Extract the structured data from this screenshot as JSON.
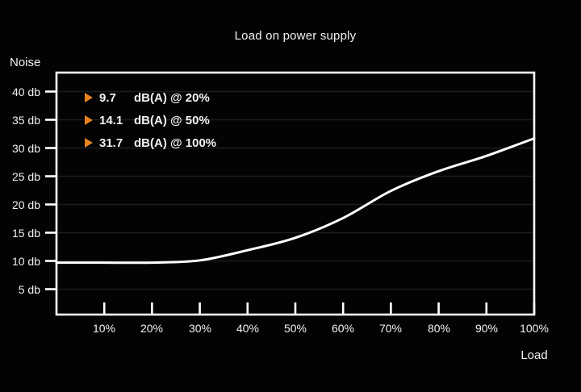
{
  "colors": {
    "background": "#030303",
    "foreground": "#f2f2f2",
    "accent_orange": "#e8821e",
    "curve": "#ffffff",
    "gridline": "#1d1d1d"
  },
  "chart": {
    "title": "Load on power supply",
    "y_axis_label": "Noise",
    "x_axis_label": "Load",
    "y_ticks": [
      {
        "value": 40,
        "label": "40 db"
      },
      {
        "value": 35,
        "label": "35 db"
      },
      {
        "value": 30,
        "label": "30 db"
      },
      {
        "value": 25,
        "label": "25 db"
      },
      {
        "value": 20,
        "label": "20 db"
      },
      {
        "value": 15,
        "label": "15 db"
      },
      {
        "value": 10,
        "label": "10 db"
      },
      {
        "value": 5,
        "label": "5 db"
      }
    ],
    "x_ticks": [
      {
        "value": 10,
        "label": "10%"
      },
      {
        "value": 20,
        "label": "20%"
      },
      {
        "value": 30,
        "label": "30%"
      },
      {
        "value": 40,
        "label": "40%"
      },
      {
        "value": 50,
        "label": "50%"
      },
      {
        "value": 60,
        "label": "60%"
      },
      {
        "value": 70,
        "label": "70%"
      },
      {
        "value": 80,
        "label": "80%"
      },
      {
        "value": 90,
        "label": "90%"
      },
      {
        "value": 100,
        "label": "100%"
      }
    ],
    "legend": [
      {
        "marker": "triangle-right",
        "value": "9.7",
        "text": "dB(A) @ 20%"
      },
      {
        "marker": "triangle-right",
        "value": "14.1",
        "text": "dB(A) @ 50%"
      },
      {
        "marker": "triangle-right",
        "value": "31.7",
        "text": "dB(A) @ 100%"
      }
    ]
  },
  "chart_data": {
    "type": "line",
    "title": "Load on power supply",
    "xlabel": "Load",
    "ylabel": "Noise",
    "x": [
      0,
      10,
      20,
      30,
      40,
      50,
      60,
      70,
      80,
      90,
      100
    ],
    "series": [
      {
        "name": "noise-vs-load",
        "values": [
          9.7,
          9.7,
          9.7,
          10.1,
          11.9,
          14.1,
          17.6,
          22.4,
          25.9,
          28.6,
          31.7
        ]
      }
    ],
    "xlim": [
      0,
      100
    ],
    "ylim": [
      0.5,
      43.36
    ],
    "y_tick_step": 5,
    "grid": "faint horizontal gridlines at each 5 db step",
    "legend_position": "top-left inside plot",
    "annotations": [
      "9.7 dB(A) @ 20%",
      "14.1 dB(A) @ 50%",
      "31.7 dB(A) @ 100%"
    ]
  }
}
